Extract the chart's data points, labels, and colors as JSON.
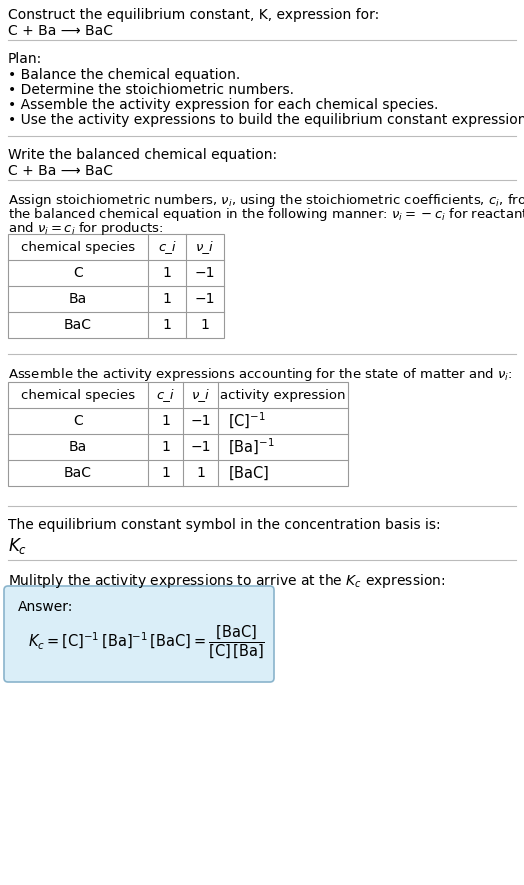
{
  "title_line1": "Construct the equilibrium constant, K, expression for:",
  "title_line2": "C + Ba ⟶ BaC",
  "plan_header": "Plan:",
  "plan_items": [
    "• Balance the chemical equation.",
    "• Determine the stoichiometric numbers.",
    "• Assemble the activity expression for each chemical species.",
    "• Use the activity expressions to build the equilibrium constant expression."
  ],
  "balanced_eq_header": "Write the balanced chemical equation:",
  "balanced_eq": "C + Ba ⟶ BaC",
  "stoich_intro1": "Assign stoichiometric numbers, ν_i, using the stoichiometric coefficients, c_i, from",
  "stoich_intro2": "the balanced chemical equation in the following manner: ν_i = −c_i for reactants",
  "stoich_intro3": "and ν_i = c_i for products:",
  "table1_headers": [
    "chemical species",
    "c_i",
    "ν_i"
  ],
  "table1_rows": [
    [
      "C",
      "1",
      "−1"
    ],
    [
      "Ba",
      "1",
      "−1"
    ],
    [
      "BaC",
      "1",
      "1"
    ]
  ],
  "assemble_intro": "Assemble the activity expressions accounting for the state of matter and ν_i:",
  "table2_headers": [
    "chemical species",
    "c_i",
    "ν_i",
    "activity expression"
  ],
  "table2_rows": [
    [
      "C",
      "1",
      "−1",
      "[C]⁻¹"
    ],
    [
      "Ba",
      "1",
      "−1",
      "[Ba]⁻¹"
    ],
    [
      "BaC",
      "1",
      "1",
      "[BaC]"
    ]
  ],
  "kc_symbol_text": "The equilibrium constant symbol in the concentration basis is:",
  "multiply_text": "Mulitply the activity expressions to arrive at the K_c expression:",
  "answer_label": "Answer:",
  "answer_box_color": "#daeef8",
  "answer_box_border": "#8ab4cc",
  "bg_color": "#ffffff",
  "text_color": "#000000",
  "table_border_color": "#999999",
  "separator_color": "#bbbbbb"
}
